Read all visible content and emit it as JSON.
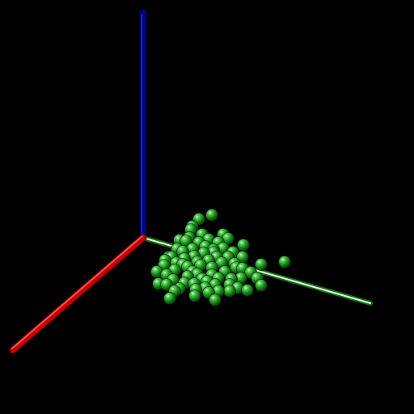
{
  "scene": {
    "background": "#000000",
    "axes": [
      {
        "name": "x-axis",
        "color": "#cc0000"
      },
      {
        "name": "y-axis",
        "color": "#1a9e1a"
      },
      {
        "name": "z-axis",
        "color": "#0000cc"
      }
    ],
    "sphere_color": "#1f8a1f",
    "sphere_count": 80
  }
}
